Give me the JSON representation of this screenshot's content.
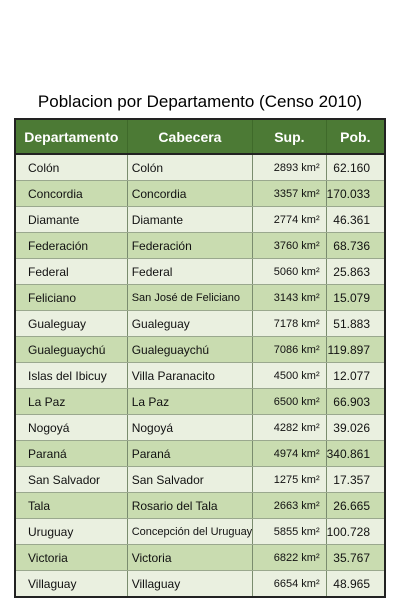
{
  "title": "Poblacion por Departamento (Censo 2010)",
  "headers": {
    "departamento": "Departamento",
    "cabecera": "Cabecera",
    "sup": "Sup.",
    "pob": "Pob."
  },
  "rows": [
    {
      "departamento": "Colón",
      "cabecera": "Colón",
      "sup": "2893 km²",
      "pob": "62.160"
    },
    {
      "departamento": "Concordia",
      "cabecera": "Concordia",
      "sup": "3357 km²",
      "pob": "170.033"
    },
    {
      "departamento": "Diamante",
      "cabecera": "Diamante",
      "sup": "2774 km²",
      "pob": "46.361"
    },
    {
      "departamento": "Federación",
      "cabecera": "Federación",
      "sup": "3760 km²",
      "pob": "68.736"
    },
    {
      "departamento": "Federal",
      "cabecera": "Federal",
      "sup": "5060 km²",
      "pob": "25.863"
    },
    {
      "departamento": "Feliciano",
      "cabecera": "San José de Feliciano",
      "sup": "3143 km²",
      "pob": "15.079"
    },
    {
      "departamento": "Gualeguay",
      "cabecera": "Gualeguay",
      "sup": "7178 km²",
      "pob": "51.883"
    },
    {
      "departamento": "Gualeguaychú",
      "cabecera": "Gualeguaychú",
      "sup": "7086 km²",
      "pob": "119.897"
    },
    {
      "departamento": "Islas del Ibicuy",
      "cabecera": "Villa Paranacito",
      "sup": "4500 km²",
      "pob": "12.077"
    },
    {
      "departamento": "La Paz",
      "cabecera": "La Paz",
      "sup": "6500 km²",
      "pob": "66.903"
    },
    {
      "departamento": "Nogoyá",
      "cabecera": "Nogoyá",
      "sup": "4282 km²",
      "pob": "39.026"
    },
    {
      "departamento": "Paraná",
      "cabecera": "Paraná",
      "sup": "4974 km²",
      "pob": "340.861"
    },
    {
      "departamento": "San Salvador",
      "cabecera": "San Salvador",
      "sup": "1275 km²",
      "pob": "17.357"
    },
    {
      "departamento": "Tala",
      "cabecera": "Rosario del Tala",
      "sup": "2663 km²",
      "pob": "26.665"
    },
    {
      "departamento": "Uruguay",
      "cabecera": "Concepción del Uruguay",
      "sup": "5855 km²",
      "pob": "100.728"
    },
    {
      "departamento": "Victoria",
      "cabecera": "Victoria",
      "sup": "6822 km²",
      "pob": "35.767"
    },
    {
      "departamento": "Villaguay",
      "cabecera": "Villaguay",
      "sup": "6654 km²",
      "pob": "48.965"
    }
  ],
  "colors": {
    "header_bg": "#4c7a35",
    "row_light": "#eaf0e0",
    "row_dark": "#c9dcb0"
  }
}
